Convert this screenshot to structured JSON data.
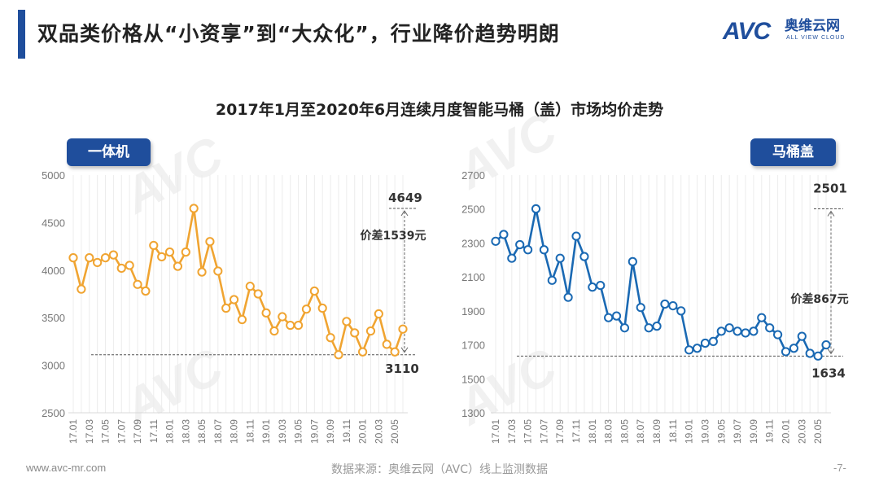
{
  "header": {
    "title": "双品类价格从“小资享”到“大众化”，行业降价趋势明朗",
    "logo_mark": "AVC",
    "logo_cn": "奥维云网",
    "logo_en": "ALL VIEW CLOUD"
  },
  "colors": {
    "brand": "#1f4e9c",
    "left_series": "#f0a431",
    "right_series": "#1a69b3"
  },
  "watermark": {
    "text": "AVC奥维云网"
  },
  "subtitle": "2017年1月至2020年6月连续月度智能马桶（盖）市场均价走势",
  "footer": {
    "website": "www.avc-mr.com",
    "source": "数据来源：奥维云网（AVC）线上监测数据",
    "page": "-7-"
  },
  "chart_data": [
    {
      "type": "line",
      "badge": "一体机",
      "categories": [
        "17.01",
        "17.02",
        "17.03",
        "17.04",
        "17.05",
        "17.06",
        "17.07",
        "17.08",
        "17.09",
        "17.10",
        "17.11",
        "17.12",
        "18.01",
        "18.02",
        "18.03",
        "18.04",
        "18.05",
        "18.06",
        "18.07",
        "18.08",
        "18.09",
        "18.10",
        "18.11",
        "18.12",
        "19.01",
        "19.02",
        "19.03",
        "19.04",
        "19.05",
        "19.06",
        "19.07",
        "19.08",
        "19.09",
        "19.10",
        "19.11",
        "19.12",
        "20.01",
        "20.02",
        "20.03",
        "20.04",
        "20.05",
        "20.06"
      ],
      "tick_labels": [
        "17.01",
        "17.03",
        "17.05",
        "17.07",
        "17.09",
        "17.11",
        "18.01",
        "18.03",
        "18.05",
        "18.07",
        "18.09",
        "18.11",
        "19.01",
        "19.03",
        "19.05",
        "19.07",
        "19.09",
        "19.11",
        "20.01",
        "20.03",
        "20.05"
      ],
      "values": [
        4130,
        3800,
        4130,
        4080,
        4130,
        4160,
        4020,
        4050,
        3850,
        3780,
        4260,
        4140,
        4190,
        4040,
        4190,
        4649,
        3980,
        4300,
        3990,
        3600,
        3690,
        3480,
        3830,
        3750,
        3550,
        3360,
        3510,
        3420,
        3420,
        3590,
        3780,
        3600,
        3290,
        3110,
        3460,
        3340,
        3140,
        3360,
        3540,
        3220,
        3140,
        3380
      ],
      "ylim": [
        2500,
        5000
      ],
      "yticks": [
        2500,
        3000,
        3500,
        4000,
        4500,
        5000
      ],
      "annotations": {
        "max_label": "4649",
        "min_label": "3110",
        "diff_label": "价差1539元"
      }
    },
    {
      "type": "line",
      "badge": "马桶盖",
      "categories": [
        "17.01",
        "17.02",
        "17.03",
        "17.04",
        "17.05",
        "17.06",
        "17.07",
        "17.08",
        "17.09",
        "17.10",
        "17.11",
        "17.12",
        "18.01",
        "18.02",
        "18.03",
        "18.04",
        "18.05",
        "18.06",
        "18.07",
        "18.08",
        "18.09",
        "18.10",
        "18.11",
        "18.12",
        "19.01",
        "19.02",
        "19.03",
        "19.04",
        "19.05",
        "19.06",
        "19.07",
        "19.08",
        "19.09",
        "19.10",
        "19.11",
        "19.12",
        "20.01",
        "20.02",
        "20.03",
        "20.04",
        "20.05",
        "20.06"
      ],
      "tick_labels": [
        "17.01",
        "17.03",
        "17.05",
        "17.07",
        "17.09",
        "17.11",
        "18.01",
        "18.03",
        "18.05",
        "18.07",
        "18.09",
        "18.11",
        "19.01",
        "19.03",
        "19.05",
        "19.07",
        "19.09",
        "19.11",
        "20.01",
        "20.03",
        "20.05"
      ],
      "values": [
        2310,
        2350,
        2210,
        2290,
        2260,
        2501,
        2260,
        2080,
        2210,
        1980,
        2340,
        2220,
        2040,
        2050,
        1860,
        1870,
        1800,
        2190,
        1920,
        1800,
        1810,
        1940,
        1930,
        1900,
        1670,
        1680,
        1710,
        1720,
        1780,
        1800,
        1780,
        1770,
        1780,
        1860,
        1800,
        1760,
        1660,
        1680,
        1750,
        1650,
        1634,
        1700
      ],
      "ylim": [
        1300,
        2700
      ],
      "yticks": [
        1300,
        1500,
        1700,
        1900,
        2100,
        2300,
        2500,
        2700
      ],
      "annotations": {
        "max_label": "2501",
        "min_label": "1634",
        "diff_label": "价差867元"
      }
    }
  ]
}
